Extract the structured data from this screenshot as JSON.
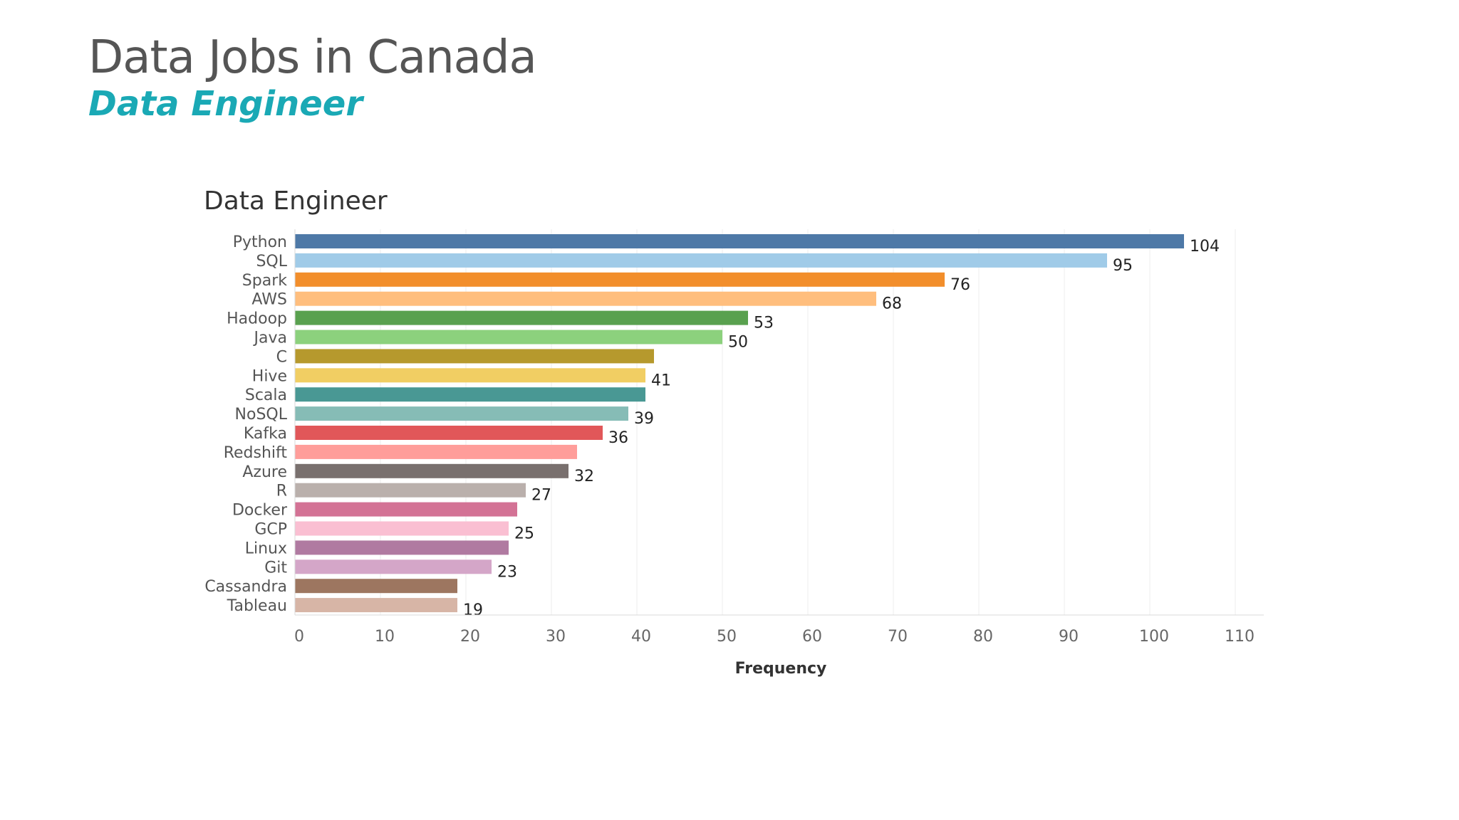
{
  "slide": {
    "title": "Data Jobs in Canada",
    "subtitle": "Data Engineer",
    "subtitle_color": "#1aa9b5"
  },
  "chart_data": {
    "type": "bar",
    "orientation": "horizontal",
    "title": "Data Engineer",
    "xlabel": "Frequency",
    "ylabel": "",
    "xlim": [
      0,
      110
    ],
    "xticks": [
      0,
      10,
      20,
      30,
      40,
      50,
      60,
      70,
      80,
      90,
      100,
      110
    ],
    "grid": true,
    "categories": [
      "Python",
      "SQL",
      "Spark",
      "AWS",
      "Hadoop",
      "Java",
      "C",
      "Hive",
      "Scala",
      "NoSQL",
      "Kafka",
      "Redshift",
      "Azure",
      "R",
      "Docker",
      "GCP",
      "Linux",
      "Git",
      "Cassandra",
      "Tableau"
    ],
    "values": [
      104,
      95,
      76,
      68,
      53,
      50,
      42,
      41,
      41,
      39,
      36,
      33,
      32,
      27,
      26,
      25,
      25,
      23,
      19,
      19
    ],
    "value_labels": [
      "104",
      "95",
      "76",
      "68",
      "53",
      "50",
      "",
      "41",
      "",
      "39",
      "36",
      "",
      "32",
      "27",
      "",
      "25",
      "",
      "23",
      "",
      "19"
    ],
    "colors": [
      "#4e79a7",
      "#a0cbe8",
      "#f28e2b",
      "#ffbe7d",
      "#59a14f",
      "#8cd17d",
      "#b6992d",
      "#f1ce63",
      "#499894",
      "#86bcb6",
      "#e15759",
      "#ff9d9a",
      "#79706e",
      "#bab0ac",
      "#d37295",
      "#fabfd2",
      "#b07aa1",
      "#d4a6c8",
      "#9d7660",
      "#d7b5a6"
    ]
  }
}
